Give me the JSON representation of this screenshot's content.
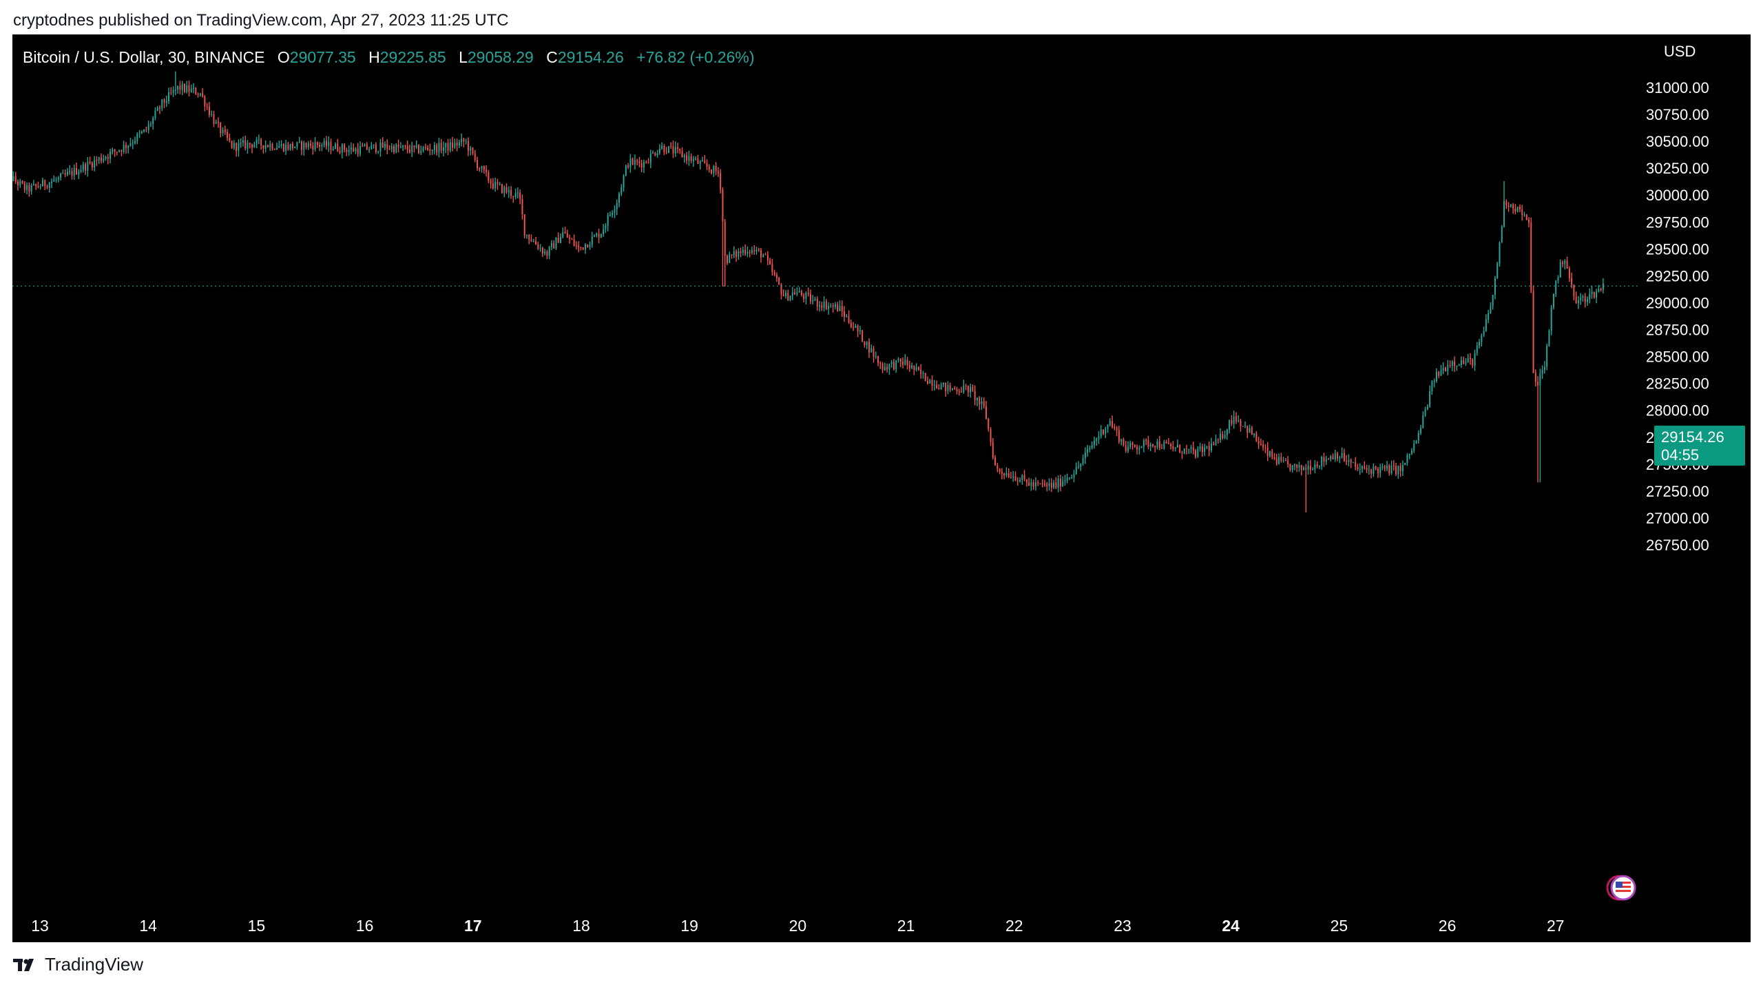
{
  "header": {
    "published_text": "cryptodnes published on TradingView.com, Apr 27, 2023 11:25 UTC"
  },
  "legend": {
    "symbol": "Bitcoin / U.S. Dollar, 30, BINANCE",
    "open_label": "O",
    "open_value": "29077.35",
    "high_label": "H",
    "high_value": "29225.85",
    "low_label": "L",
    "low_value": "29058.29",
    "close_label": "C",
    "close_value": "29154.26",
    "change": "+76.82 (+0.26%)"
  },
  "price_tag": {
    "price": "29154.26",
    "countdown": "04:55"
  },
  "footer": {
    "brand": "TradingView"
  },
  "colors": {
    "up": "#26a69a",
    "down": "#ef5350",
    "background": "#000000",
    "axis_text": "#ffffff",
    "price_tag_bg": "#0c9981"
  },
  "chart_data": {
    "type": "candlestick",
    "title": "Bitcoin / U.S. Dollar, 30, BINANCE",
    "currency": "USD",
    "last_price": 29154.26,
    "ylim": [
      26500,
      31250
    ],
    "y_ticks": [
      "31000.00",
      "30750.00",
      "30500.00",
      "30250.00",
      "30000.00",
      "29750.00",
      "29500.00",
      "29250.00",
      "29000.00",
      "28750.00",
      "28500.00",
      "28250.00",
      "28000.00",
      "27750.00",
      "27500.00",
      "27250.00",
      "27000.00",
      "26750.00"
    ],
    "x_ticks": [
      {
        "day": 13,
        "label": "13",
        "bold": false
      },
      {
        "day": 14,
        "label": "14",
        "bold": false
      },
      {
        "day": 15,
        "label": "15",
        "bold": false
      },
      {
        "day": 16,
        "label": "16",
        "bold": false
      },
      {
        "day": 17,
        "label": "17",
        "bold": true
      },
      {
        "day": 18,
        "label": "18",
        "bold": false
      },
      {
        "day": 19,
        "label": "19",
        "bold": false
      },
      {
        "day": 20,
        "label": "20",
        "bold": false
      },
      {
        "day": 21,
        "label": "21",
        "bold": false
      },
      {
        "day": 22,
        "label": "22",
        "bold": false
      },
      {
        "day": 23,
        "label": "23",
        "bold": false
      },
      {
        "day": 24,
        "label": "24",
        "bold": true
      },
      {
        "day": 25,
        "label": "25",
        "bold": false
      },
      {
        "day": 26,
        "label": "26",
        "bold": false
      },
      {
        "day": 27,
        "label": "27",
        "bold": false
      }
    ],
    "x_domain": [
      12.63,
      28.7
    ],
    "price_path": [
      [
        12.63,
        30250
      ],
      [
        12.9,
        30050
      ],
      [
        13.2,
        30150
      ],
      [
        13.5,
        30300
      ],
      [
        13.8,
        30450
      ],
      [
        14.0,
        30600
      ],
      [
        14.15,
        30850
      ],
      [
        14.3,
        31000
      ],
      [
        14.5,
        30950
      ],
      [
        14.65,
        30650
      ],
      [
        14.8,
        30450
      ],
      [
        15.0,
        30480
      ],
      [
        15.3,
        30450
      ],
      [
        15.6,
        30470
      ],
      [
        15.9,
        30420
      ],
      [
        16.2,
        30450
      ],
      [
        16.5,
        30420
      ],
      [
        16.8,
        30450
      ],
      [
        16.95,
        30500
      ],
      [
        17.05,
        30300
      ],
      [
        17.2,
        30100
      ],
      [
        17.45,
        29980
      ],
      [
        17.5,
        29650
      ],
      [
        17.7,
        29450
      ],
      [
        17.85,
        29650
      ],
      [
        18.0,
        29500
      ],
      [
        18.2,
        29650
      ],
      [
        18.35,
        29950
      ],
      [
        18.45,
        30300
      ],
      [
        18.6,
        30300
      ],
      [
        18.75,
        30450
      ],
      [
        18.9,
        30400
      ],
      [
        19.1,
        30300
      ],
      [
        19.3,
        30200
      ],
      [
        19.35,
        29400
      ],
      [
        19.55,
        29500
      ],
      [
        19.7,
        29450
      ],
      [
        19.9,
        29050
      ],
      [
        20.0,
        29100
      ],
      [
        20.2,
        29000
      ],
      [
        20.4,
        28950
      ],
      [
        20.6,
        28700
      ],
      [
        20.8,
        28400
      ],
      [
        21.0,
        28450
      ],
      [
        21.2,
        28300
      ],
      [
        21.4,
        28200
      ],
      [
        21.6,
        28200
      ],
      [
        21.75,
        28000
      ],
      [
        21.85,
        27450
      ],
      [
        22.0,
        27400
      ],
      [
        22.2,
        27300
      ],
      [
        22.4,
        27300
      ],
      [
        22.6,
        27450
      ],
      [
        22.75,
        27700
      ],
      [
        22.9,
        27900
      ],
      [
        23.05,
        27650
      ],
      [
        23.3,
        27700
      ],
      [
        23.5,
        27650
      ],
      [
        23.7,
        27600
      ],
      [
        23.9,
        27700
      ],
      [
        24.05,
        27950
      ],
      [
        24.2,
        27800
      ],
      [
        24.35,
        27600
      ],
      [
        24.5,
        27500
      ],
      [
        24.65,
        27450
      ],
      [
        24.8,
        27500
      ],
      [
        25.0,
        27600
      ],
      [
        25.2,
        27450
      ],
      [
        25.4,
        27450
      ],
      [
        25.6,
        27450
      ],
      [
        25.75,
        27750
      ],
      [
        25.9,
        28300
      ],
      [
        26.05,
        28450
      ],
      [
        26.25,
        28450
      ],
      [
        26.35,
        28700
      ],
      [
        26.45,
        29100
      ],
      [
        26.55,
        29950
      ],
      [
        26.7,
        29850
      ],
      [
        26.78,
        29700
      ],
      [
        26.82,
        28200
      ],
      [
        26.92,
        28400
      ],
      [
        27.0,
        29100
      ],
      [
        27.1,
        29450
      ],
      [
        27.2,
        29000
      ],
      [
        27.3,
        29050
      ],
      [
        27.4,
        29100
      ],
      [
        27.45,
        29154
      ]
    ],
    "wick_extremes": [
      {
        "day": 14.25,
        "high": 31150
      },
      {
        "day": 19.32,
        "low": 29150
      },
      {
        "day": 24.7,
        "low": 27050
      },
      {
        "day": 26.52,
        "high": 30130
      },
      {
        "day": 26.85,
        "low": 27330
      }
    ],
    "candle_interval_days": 0.0208,
    "current_price_line": 29154.26
  }
}
